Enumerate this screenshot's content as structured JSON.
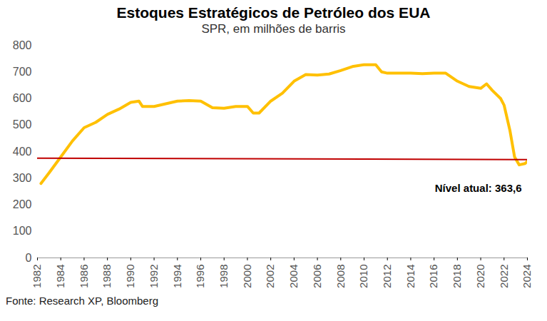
{
  "chart_data": {
    "type": "line",
    "title": "Estoques Estratégicos de Petróleo dos EUA",
    "subtitle": "SPR, em milhões de barris",
    "caption": "Fonte: Research XP, Bloomberg",
    "annotations": [
      {
        "text": "Nível atual: 363,6"
      }
    ],
    "series": [
      {
        "color": "#FFC000",
        "x": [
          1982.3,
          1983,
          1984,
          1985,
          1986,
          1987,
          1988,
          1989,
          1990,
          1990.7,
          1991,
          1992,
          1993,
          1994,
          1995,
          1996,
          1997,
          1998,
          1999,
          2000,
          2000.5,
          2001,
          2002,
          2003,
          2004,
          2005,
          2006,
          2007,
          2008,
          2009,
          2010,
          2011,
          2011.5,
          2012,
          2013,
          2014,
          2015,
          2016,
          2017,
          2018,
          2019,
          2020,
          2020.5,
          2021,
          2021.7,
          2022,
          2022.5,
          2022.9,
          2023.3,
          2023.8,
          2024
        ],
        "values": [
          280,
          320,
          380,
          440,
          490,
          510,
          540,
          560,
          585,
          590,
          570,
          570,
          580,
          590,
          592,
          590,
          565,
          563,
          570,
          570,
          545,
          545,
          590,
          620,
          665,
          690,
          688,
          692,
          705,
          720,
          727,
          727,
          700,
          695,
          695,
          695,
          693,
          695,
          695,
          665,
          645,
          638,
          655,
          630,
          600,
          575,
          480,
          380,
          350,
          355,
          363.6
        ]
      },
      {
        "color": "#C00000",
        "x": [
          1982,
          2024
        ],
        "values": [
          375,
          370
        ]
      }
    ],
    "xlim": [
      1982,
      2024
    ],
    "xticks": [
      1982,
      1984,
      1986,
      1988,
      1990,
      1992,
      1994,
      1996,
      1998,
      2000,
      2002,
      2004,
      2006,
      2008,
      2010,
      2012,
      2014,
      2016,
      2018,
      2020,
      2022,
      2024
    ],
    "ylim": [
      0,
      800
    ],
    "yticks": [
      0,
      100,
      200,
      300,
      400,
      500,
      600,
      700,
      800
    ],
    "grid": false
  }
}
